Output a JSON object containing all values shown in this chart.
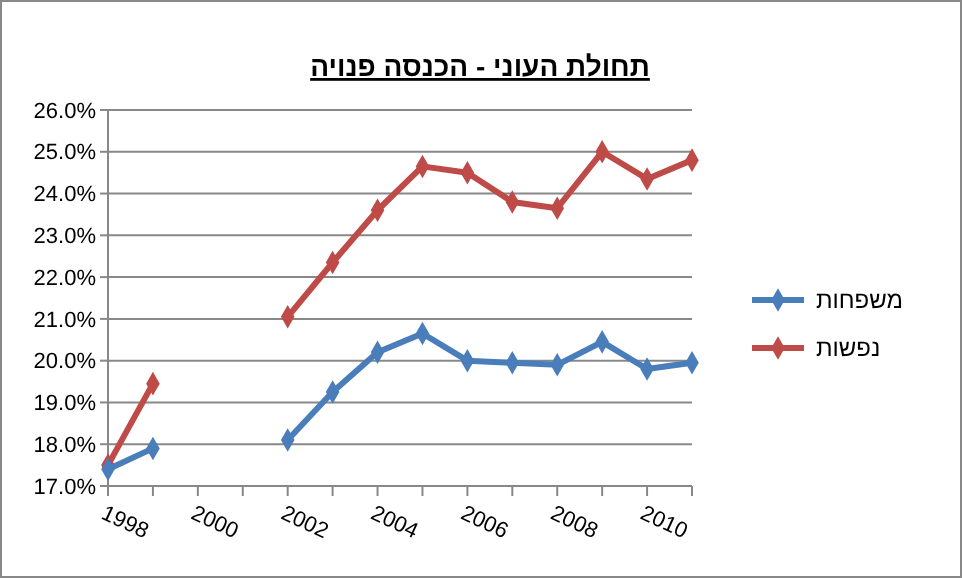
{
  "chart_data": {
    "type": "line",
    "title": "תחולת העוני - הכנסה פנויה",
    "categories": [
      "1998",
      null,
      "2000",
      null,
      "2002",
      null,
      "2004",
      null,
      "2006",
      null,
      "2008",
      null,
      "2010",
      null
    ],
    "series": [
      {
        "name": "משפחות",
        "color": "#4a7ebb",
        "values": [
          17.4,
          17.9,
          null,
          null,
          18.1,
          19.25,
          20.2,
          20.65,
          20.0,
          19.95,
          19.9,
          20.45,
          19.8,
          19.95
        ]
      },
      {
        "name": "נפשות",
        "color": "#be4b48",
        "values": [
          17.5,
          19.45,
          null,
          null,
          21.05,
          22.35,
          23.6,
          24.65,
          24.5,
          23.8,
          23.65,
          25.0,
          24.35,
          24.8
        ]
      }
    ],
    "ylim": [
      17,
      26
    ],
    "yticks": [
      {
        "value": 17,
        "label": "17.0%"
      },
      {
        "value": 18,
        "label": "18.0%"
      },
      {
        "value": 19,
        "label": "19.0%"
      },
      {
        "value": 20,
        "label": "20.0%"
      },
      {
        "value": 21,
        "label": "21.0%"
      },
      {
        "value": 22,
        "label": "22.0%"
      },
      {
        "value": 23,
        "label": "23.0%"
      },
      {
        "value": 24,
        "label": "24.0%"
      },
      {
        "value": 25,
        "label": "25.0%"
      },
      {
        "value": 26,
        "label": "26.0%"
      }
    ],
    "grid": "y",
    "legend": "right",
    "marker": "diamond",
    "line_style": "solid"
  }
}
